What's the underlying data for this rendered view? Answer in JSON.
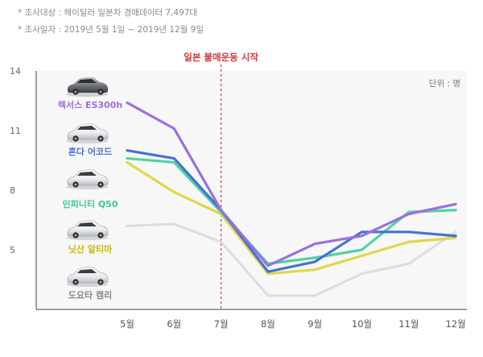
{
  "notes": {
    "survey_target": "* 조사대상 : 헤이딜러 일본차 경매데이터 7,497대",
    "survey_period": "* 조사일자 : 2019년 5월 1일 ~ 2019년 12월 9일"
  },
  "chart_data": {
    "type": "line",
    "title": "",
    "unit_label": "단위 : 명",
    "annotation": "일본 불매운동 시작",
    "annotation_at": "7월",
    "categories": [
      "5월",
      "6월",
      "7월",
      "8월",
      "9월",
      "10월",
      "11월",
      "12월"
    ],
    "ylim": [
      2,
      14
    ],
    "yticks": [
      5,
      8,
      11,
      14
    ],
    "grid": false,
    "series": [
      {
        "name": "렉서스 ES300h",
        "color": "#9b6fe0",
        "values": [
          12.4,
          11.1,
          7.0,
          4.2,
          5.3,
          5.7,
          6.8,
          7.3
        ]
      },
      {
        "name": "혼다 어코드",
        "color": "#4472d4",
        "values": [
          10.0,
          9.6,
          7.0,
          3.9,
          4.4,
          5.9,
          5.9,
          5.7
        ]
      },
      {
        "name": "인피니티 Q50",
        "color": "#4fd4a0",
        "values": [
          9.6,
          9.4,
          6.9,
          4.3,
          4.6,
          5.0,
          6.9,
          7.0
        ]
      },
      {
        "name": "닛산 알티마",
        "color": "#ddd84a",
        "values": [
          9.4,
          7.9,
          6.8,
          3.8,
          4.0,
          4.7,
          5.4,
          5.6
        ]
      },
      {
        "name": "도요타 캠리",
        "color": "#dddddd",
        "values": [
          6.2,
          6.3,
          5.4,
          2.7,
          2.7,
          3.8,
          4.3,
          5.9
        ]
      }
    ]
  }
}
